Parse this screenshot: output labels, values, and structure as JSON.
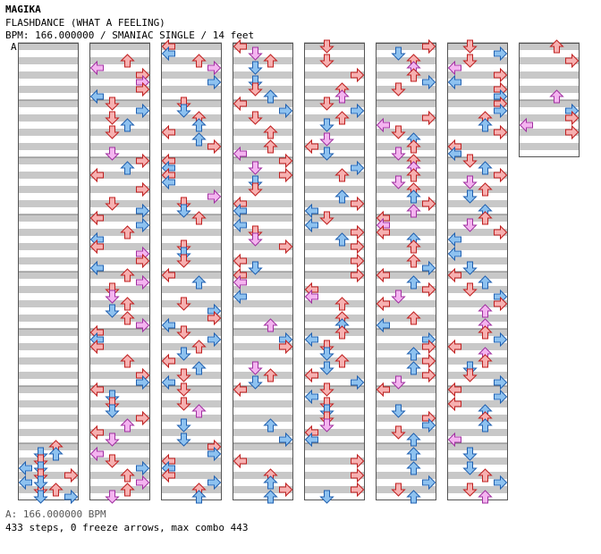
{
  "header": {
    "artist": "MAGIKA",
    "title": "FLASHDANCE (WHAT A FEELING)",
    "subtitle": "BPM: 166.000000 / SMANIAC SINGLE / 14 feet"
  },
  "bpm_marker": "A",
  "footer": {
    "bpm_legend": "A: 166.000000 BPM",
    "stats": "433 steps, 0 freeze arrows, max combo 443"
  },
  "colors": {
    "stripe": "#c8c8c8",
    "column_border": "#555555",
    "quarter_arrow_fill": "#f6b0b0",
    "quarter_arrow_stroke": "#c02020",
    "eighth_arrow_fill": "#8ec2f0",
    "eighth_arrow_stroke": "#2060b0",
    "sixteenth_arrow_fill": "#f4b4f0",
    "sixteenth_arrow_stroke": "#a030a0"
  },
  "chart": {
    "columns": 8,
    "lanes": [
      "left",
      "down",
      "up",
      "right"
    ],
    "measures_per_column": 8,
    "total_measures": 58
  }
}
